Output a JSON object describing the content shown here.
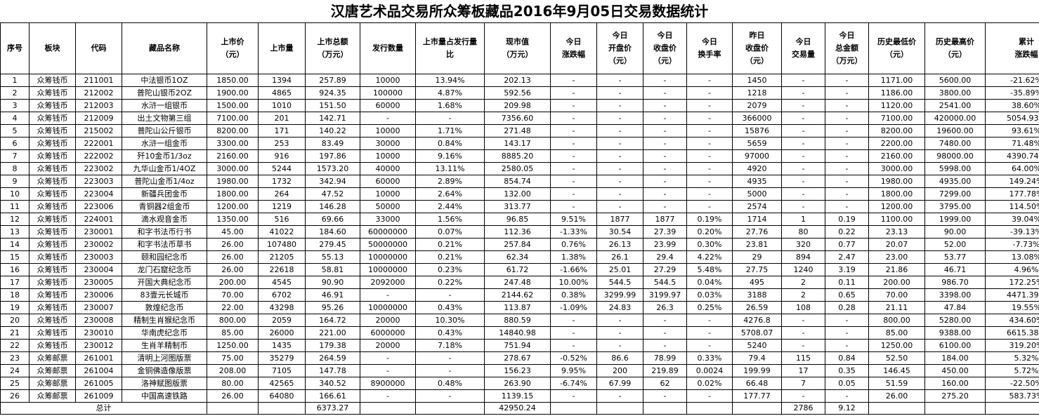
{
  "title": "汉唐艺术品交易所众筹板藏品2016年9月05日交易数据统计",
  "headers": [
    "序号",
    "板块",
    "代码",
    "藏品名称",
    "上市价\n（元）",
    "上市量",
    "上市总额\n（万元）",
    "发行数量",
    "上市量占发行量\n比",
    "现市值\n（万元）",
    "今日\n涨跌幅",
    "今日\n开盘价\n（元）",
    "今日\n收盘价\n（元）",
    "今日\n换手率",
    "昨日\n收盘价\n（元）",
    "今日\n交易量",
    "今日\n总金额\n（万元）",
    "历史最低价\n（元）",
    "历史最高价\n（元）",
    "累计\n涨跌幅"
  ],
  "rows": [
    [
      "1",
      "众筹钱币",
      "211001",
      "中法银币1OZ",
      "1850.00",
      "1394",
      "257.89",
      "10000",
      "13.94%",
      "202.13",
      "-",
      "-",
      "-",
      "-",
      "1450",
      "-",
      "-",
      "1171.00",
      "5600.00",
      "-21.62%"
    ],
    [
      "2",
      "众筹钱币",
      "212002",
      "普陀山银币2OZ",
      "1900.00",
      "4865",
      "924.35",
      "100000",
      "4.87%",
      "592.56",
      "-",
      "-",
      "-",
      "-",
      "1218",
      "-",
      "-",
      "1186.00",
      "3800.00",
      "-35.89%"
    ],
    [
      "3",
      "众筹钱币",
      "212003",
      "水浒一组银币",
      "1500.00",
      "1010",
      "151.50",
      "60000",
      "1.68%",
      "209.98",
      "-",
      "-",
      "-",
      "-",
      "2079",
      "-",
      "-",
      "1120.00",
      "2541.00",
      "38.60%"
    ],
    [
      "4",
      "众筹钱币",
      "212009",
      "出土文物第三组",
      "7100.00",
      "201",
      "142.71",
      "-",
      "-",
      "7356.60",
      "-",
      "-",
      "-",
      "-",
      "366000",
      "-",
      "-",
      "7100.00",
      "420000.00",
      "5054.93%"
    ],
    [
      "5",
      "众筹钱币",
      "215002",
      "普陀山公斤银币",
      "8200.00",
      "171",
      "140.22",
      "10000",
      "1.71%",
      "271.48",
      "-",
      "-",
      "-",
      "-",
      "15876",
      "-",
      "-",
      "8200.00",
      "19600.00",
      "93.61%"
    ],
    [
      "6",
      "众筹钱币",
      "222001",
      "水浒一组金币",
      "3300.00",
      "253",
      "83.49",
      "30000",
      "0.84%",
      "143.17",
      "-",
      "-",
      "-",
      "-",
      "5659",
      "-",
      "-",
      "2200.00",
      "7480.00",
      "71.48%"
    ],
    [
      "7",
      "众筹钱币",
      "222002",
      "歼10金币1/3oz",
      "2160.00",
      "916",
      "197.86",
      "10000",
      "9.16%",
      "8885.20",
      "-",
      "-",
      "-",
      "-",
      "97000",
      "-",
      "-",
      "2160.00",
      "98000.00",
      "4390.74%"
    ],
    [
      "8",
      "众筹钱币",
      "223002",
      "九华山金币1/4OZ",
      "3000.00",
      "5244",
      "1573.20",
      "40000",
      "13.11%",
      "2580.05",
      "-",
      "-",
      "-",
      "-",
      "4920",
      "-",
      "-",
      "3000.00",
      "5998.00",
      "64.00%"
    ],
    [
      "9",
      "众筹钱币",
      "223003",
      "普陀山金币1/4oz",
      "1980.00",
      "1732",
      "342.94",
      "60000",
      "2.89%",
      "854.74",
      "-",
      "-",
      "-",
      "-",
      "4935",
      "-",
      "-",
      "1980.00",
      "4935.00",
      "149.24%"
    ],
    [
      "10",
      "众筹钱币",
      "223004",
      "新疆兵团金币",
      "1800.00",
      "264",
      "47.52",
      "10000",
      "2.64%",
      "132.00",
      "-",
      "-",
      "-",
      "-",
      "5000",
      "-",
      "-",
      "1800.00",
      "7299.00",
      "177.78%"
    ],
    [
      "11",
      "众筹钱币",
      "223006",
      "青铜器2组金币",
      "1200.00",
      "1219",
      "146.28",
      "50000",
      "2.44%",
      "313.77",
      "-",
      "-",
      "-",
      "-",
      "2574",
      "-",
      "-",
      "1200.00",
      "3795.00",
      "114.50%"
    ],
    [
      "12",
      "众筹钱币",
      "224001",
      "滴水观音金币",
      "1350.00",
      "516",
      "69.66",
      "33000",
      "1.56%",
      "96.85",
      "9.51%",
      "1877",
      "1877",
      "0.19%",
      "1714",
      "1",
      "0.19",
      "1100.00",
      "1999.00",
      "39.04%"
    ],
    [
      "13",
      "众筹钱币",
      "230001",
      "和字书法币行书",
      "45.00",
      "41022",
      "184.60",
      "60000000",
      "0.07%",
      "112.36",
      "-1.33%",
      "30.54",
      "27.39",
      "0.20%",
      "27.76",
      "80",
      "0.22",
      "23.13",
      "90.00",
      "-39.13%"
    ],
    [
      "14",
      "众筹钱币",
      "230002",
      "和字书法币草书",
      "26.00",
      "107480",
      "279.45",
      "50000000",
      "0.21%",
      "257.84",
      "0.76%",
      "26.13",
      "23.99",
      "0.30%",
      "23.81",
      "320",
      "0.77",
      "20.07",
      "52.00",
      "-7.73%"
    ],
    [
      "15",
      "众筹钱币",
      "230003",
      "颐和园纪念币",
      "26.00",
      "21205",
      "55.13",
      "10000000",
      "0.21%",
      "62.34",
      "1.38%",
      "26.1",
      "29.4",
      "4.22%",
      "29",
      "894",
      "2.47",
      "23.00",
      "53.77",
      "13.08%"
    ],
    [
      "16",
      "众筹钱币",
      "230004",
      "龙门石窟纪念币",
      "26.00",
      "22618",
      "58.81",
      "10000000",
      "0.23%",
      "61.72",
      "-1.66%",
      "25.01",
      "27.29",
      "5.48%",
      "27.75",
      "1240",
      "3.19",
      "21.86",
      "46.71",
      "4.96%"
    ],
    [
      "17",
      "众筹钱币",
      "230005",
      "开国大典纪念币",
      "200.00",
      "4545",
      "90.90",
      "2092000",
      "0.22%",
      "247.48",
      "10.00%",
      "544.5",
      "544.5",
      "0.04%",
      "495",
      "2",
      "0.11",
      "200.00",
      "986.70",
      "172.25%"
    ],
    [
      "18",
      "众筹钱币",
      "230006",
      "83壹元长城币",
      "70.00",
      "6702",
      "46.91",
      "-",
      "-",
      "2144.62",
      "0.38%",
      "3299.99",
      "3199.97",
      "0.03%",
      "3188",
      "2",
      "0.65",
      "70.00",
      "3398.00",
      "4471.39%"
    ],
    [
      "19",
      "众筹钱币",
      "230007",
      "敦煌纪念币",
      "22.00",
      "43298",
      "95.26",
      "10000000",
      "0.43%",
      "113.87",
      "-1.09%",
      "24.83",
      "26.3",
      "0.25%",
      "26.59",
      "108",
      "0.28",
      "21.11",
      "47.84",
      "19.55%"
    ],
    [
      "20",
      "众筹钱币",
      "230008",
      "精制生肖猴纪念币",
      "800.00",
      "2059",
      "164.72",
      "20000",
      "10.30%",
      "880.59",
      "-",
      "-",
      "-",
      "-",
      "4276.8",
      "-",
      "-",
      "800.00",
      "5280.00",
      "434.60%"
    ],
    [
      "21",
      "众筹钱币",
      "230010",
      "华南虎纪念币",
      "85.00",
      "26000",
      "221.00",
      "6000000",
      "0.43%",
      "14840.98",
      "-",
      "-",
      "-",
      "-",
      "5708.07",
      "-",
      "-",
      "85.00",
      "9388.00",
      "6615.38%"
    ],
    [
      "22",
      "众筹钱币",
      "230012",
      "生肖羊精制币",
      "1250.00",
      "1435",
      "179.38",
      "20000",
      "7.18%",
      "751.94",
      "-",
      "-",
      "-",
      "-",
      "5240",
      "-",
      "-",
      "1250.00",
      "6100.00",
      "319.20%"
    ],
    [
      "23",
      "众筹邮票",
      "261001",
      "清明上河图版票",
      "75.00",
      "35279",
      "264.59",
      "-",
      "-",
      "278.67",
      "-0.52%",
      "86.6",
      "78.99",
      "0.33%",
      "79.4",
      "115",
      "0.84",
      "52.50",
      "184.00",
      "5.32%"
    ],
    [
      "24",
      "众筹邮票",
      "261004",
      "金铜佛造像版票",
      "208.00",
      "7105",
      "147.78",
      "-",
      "-",
      "156.23",
      "9.95%",
      "200",
      "219.89",
      "0.0024",
      "199.99",
      "17",
      "0.35",
      "146.45",
      "450.00",
      "5.72%"
    ],
    [
      "25",
      "众筹邮票",
      "261005",
      "洛神赋图版票",
      "80.00",
      "42565",
      "340.52",
      "8900000",
      "0.48%",
      "263.90",
      "-6.74%",
      "67.99",
      "62",
      "0.02%",
      "66.48",
      "7",
      "0.05",
      "51.59",
      "160.00",
      "-22.50%"
    ],
    [
      "26",
      "众筹邮票",
      "261009",
      "中国高速铁路",
      "26.00",
      "64080",
      "166.61",
      "-",
      "-",
      "1139.15",
      "-",
      "-",
      "-",
      "-",
      "177.77",
      "-",
      "-",
      "26.00",
      "275.20",
      "583.73%"
    ]
  ],
  "total": {
    "label": "总计",
    "listing_total": "6373.27",
    "market_value": "42950.24",
    "volume": "2786",
    "amount": "9.12"
  }
}
